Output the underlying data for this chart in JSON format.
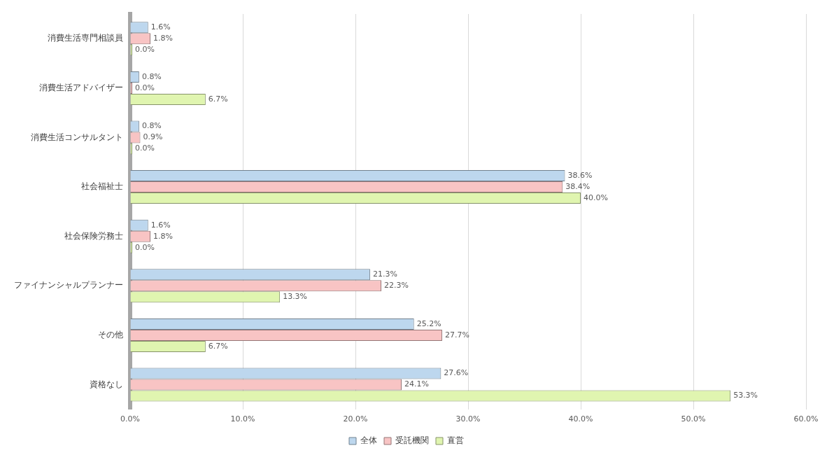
{
  "chart_data": {
    "type": "bar",
    "orientation": "horizontal",
    "categories": [
      "消費生活専門相談員",
      "消費生活アドバイザー",
      "消費生活コンサルタント",
      "社会福祉士",
      "社会保険労務士",
      "ファイナンシャルプランナー",
      "その他",
      "資格なし"
    ],
    "series": [
      {
        "name": "全体",
        "color": "#bdd7ee",
        "values": [
          1.6,
          0.8,
          0.8,
          38.6,
          1.6,
          21.3,
          25.2,
          27.6
        ],
        "value_labels": [
          "1.6%",
          "0.8%",
          "0.8%",
          "38.6%",
          "1.6%",
          "21.3%",
          "25.2%",
          "27.6%"
        ]
      },
      {
        "name": "受託機関",
        "color": "#f8c4c4",
        "values": [
          1.8,
          0.0,
          0.9,
          38.4,
          1.8,
          22.3,
          27.7,
          24.1
        ],
        "value_labels": [
          "1.8%",
          "0.0%",
          "0.9%",
          "38.4%",
          "1.8%",
          "22.3%",
          "27.7%",
          "24.1%"
        ]
      },
      {
        "name": "直営",
        "color": "#e0f5b0",
        "values": [
          0.0,
          6.7,
          0.0,
          40.0,
          0.0,
          13.3,
          6.7,
          53.3
        ],
        "value_labels": [
          "0.0%",
          "6.7%",
          "0.0%",
          "40.0%",
          "0.0%",
          "13.3%",
          "6.7%",
          "53.3%"
        ]
      }
    ],
    "xlim": [
      0,
      60
    ],
    "xticks": [
      {
        "value": 0,
        "label": "0.0%"
      },
      {
        "value": 10,
        "label": "10.0%"
      },
      {
        "value": 20,
        "label": "20.0%"
      },
      {
        "value": 30,
        "label": "30.0%"
      },
      {
        "value": 40,
        "label": "40.0%"
      },
      {
        "value": 50,
        "label": "50.0%"
      },
      {
        "value": 60,
        "label": "60.0%"
      }
    ],
    "grid": "x",
    "legend": "bottom"
  }
}
